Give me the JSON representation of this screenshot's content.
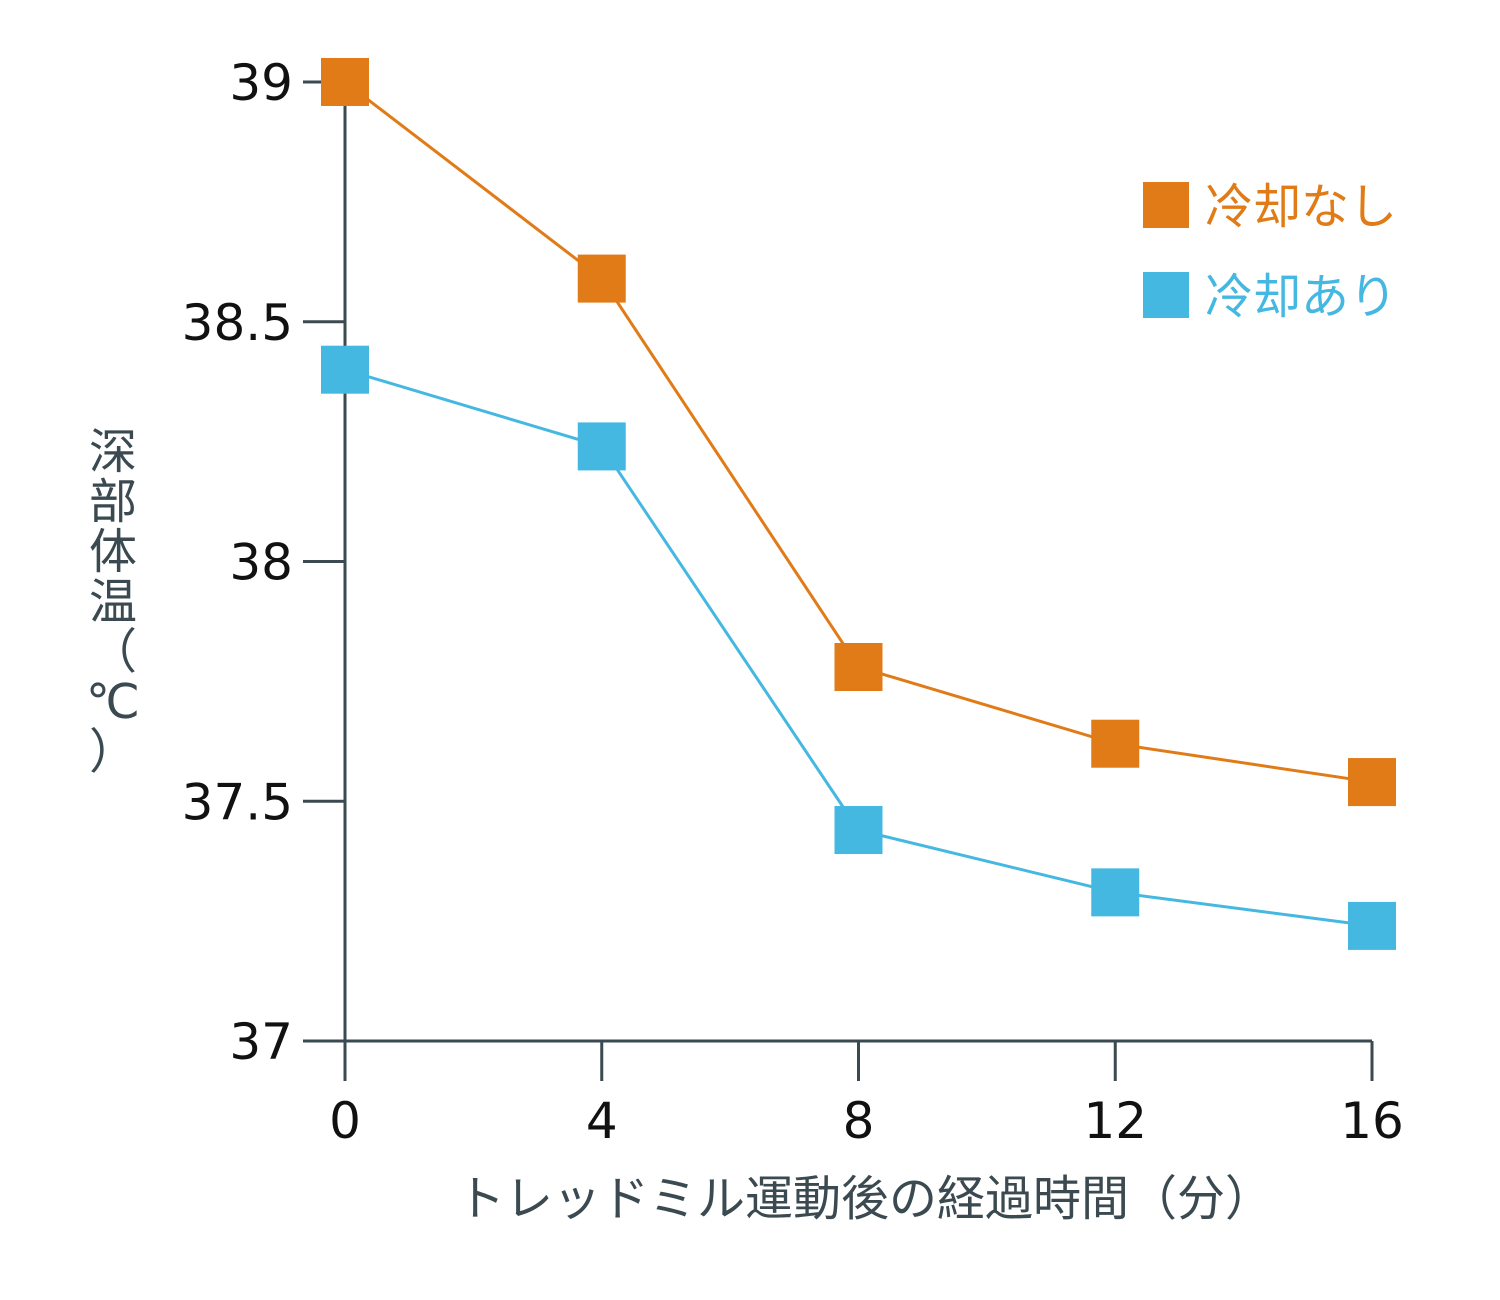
{
  "chart_data": {
    "type": "line",
    "title": "",
    "xlabel": "トレッドミル運動後の経過時間（分）",
    "ylabel": "深部体温（℃）",
    "x": [
      0,
      4,
      8,
      12,
      16
    ],
    "x_ticks": [
      "0",
      "4",
      "8",
      "12",
      "16"
    ],
    "xlim": [
      0,
      16
    ],
    "y_ticks": [
      "37",
      "37.5",
      "38",
      "38.5",
      "39"
    ],
    "ylim": [
      37,
      39
    ],
    "grid": false,
    "legend_position": "top-right",
    "series": [
      {
        "name": "冷却なし",
        "color": "#e07b17",
        "values": [
          39.0,
          38.59,
          37.78,
          37.62,
          37.54
        ]
      },
      {
        "name": "冷却あり",
        "color": "#45b8e2",
        "values": [
          38.4,
          38.24,
          37.44,
          37.31,
          37.24
        ]
      }
    ]
  }
}
